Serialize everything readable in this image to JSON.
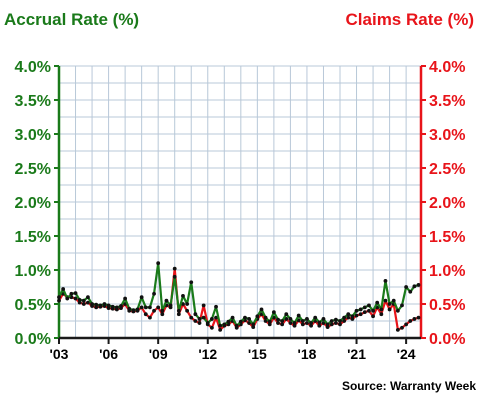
{
  "chart_data": {
    "type": "line",
    "title_left": "Accrual Rate (%)",
    "title_right": "Claims Rate (%)",
    "y_ticks": [
      "0.0%",
      "0.5%",
      "1.0%",
      "1.5%",
      "2.0%",
      "2.5%",
      "3.0%",
      "3.5%",
      "4.0%"
    ],
    "ylim": [
      0,
      4.0
    ],
    "x_ticks": [
      "'03",
      "'06",
      "'09",
      "'12",
      "'15",
      "'18",
      "'21",
      "'24"
    ],
    "x_tick_values": [
      2003,
      2006,
      2009,
      2012,
      2015,
      2018,
      2021,
      2024
    ],
    "xlim": [
      2003,
      2024.9
    ],
    "grid": true,
    "source": "Source: Warranty Week",
    "colors": {
      "accrual": "#1a7a1a",
      "claims": "#e8141a",
      "grid": "#b8c8d8"
    },
    "series": [
      {
        "name": "Accrual Rate (%)",
        "axis": "left",
        "x": [
          2003.0,
          2003.25,
          2003.5,
          2003.75,
          2004.0,
          2004.25,
          2004.5,
          2004.75,
          2005.0,
          2005.25,
          2005.5,
          2005.75,
          2006.0,
          2006.25,
          2006.5,
          2006.75,
          2007.0,
          2007.25,
          2007.5,
          2007.75,
          2008.0,
          2008.25,
          2008.5,
          2008.75,
          2009.0,
          2009.25,
          2009.5,
          2009.75,
          2010.0,
          2010.25,
          2010.5,
          2010.75,
          2011.0,
          2011.25,
          2011.5,
          2011.75,
          2012.0,
          2012.25,
          2012.5,
          2012.75,
          2013.0,
          2013.25,
          2013.5,
          2013.75,
          2014.0,
          2014.25,
          2014.5,
          2014.75,
          2015.0,
          2015.25,
          2015.5,
          2015.75,
          2016.0,
          2016.25,
          2016.5,
          2016.75,
          2017.0,
          2017.25,
          2017.5,
          2017.75,
          2018.0,
          2018.25,
          2018.5,
          2018.75,
          2019.0,
          2019.25,
          2019.5,
          2019.75,
          2020.0,
          2020.25,
          2020.5,
          2020.75,
          2021.0,
          2021.25,
          2021.5,
          2021.75,
          2022.0,
          2022.25,
          2022.5,
          2022.75,
          2023.0,
          2023.25,
          2023.5,
          2023.75,
          2024.0,
          2024.25,
          2024.5,
          2024.75
        ],
        "values": [
          0.6,
          0.72,
          0.58,
          0.65,
          0.66,
          0.56,
          0.55,
          0.6,
          0.5,
          0.49,
          0.48,
          0.5,
          0.48,
          0.46,
          0.45,
          0.47,
          0.58,
          0.43,
          0.41,
          0.42,
          0.6,
          0.45,
          0.45,
          0.65,
          1.1,
          0.4,
          0.55,
          0.48,
          0.9,
          0.4,
          0.62,
          0.5,
          0.82,
          0.35,
          0.28,
          0.3,
          0.22,
          0.28,
          0.46,
          0.18,
          0.2,
          0.24,
          0.3,
          0.18,
          0.24,
          0.3,
          0.28,
          0.2,
          0.32,
          0.42,
          0.3,
          0.24,
          0.38,
          0.27,
          0.25,
          0.35,
          0.28,
          0.22,
          0.33,
          0.25,
          0.28,
          0.22,
          0.3,
          0.23,
          0.28,
          0.2,
          0.25,
          0.27,
          0.25,
          0.3,
          0.35,
          0.32,
          0.4,
          0.42,
          0.45,
          0.48,
          0.4,
          0.52,
          0.42,
          0.84,
          0.5,
          0.55,
          0.4,
          0.48,
          0.75,
          0.68,
          0.76,
          0.78
        ]
      },
      {
        "name": "Claims Rate (%)",
        "axis": "right",
        "x": [
          2003.0,
          2003.25,
          2003.5,
          2003.75,
          2004.0,
          2004.25,
          2004.5,
          2004.75,
          2005.0,
          2005.25,
          2005.5,
          2005.75,
          2006.0,
          2006.25,
          2006.5,
          2006.75,
          2007.0,
          2007.25,
          2007.5,
          2007.75,
          2008.0,
          2008.25,
          2008.5,
          2008.75,
          2009.0,
          2009.25,
          2009.5,
          2009.75,
          2010.0,
          2010.25,
          2010.5,
          2010.75,
          2011.0,
          2011.25,
          2011.5,
          2011.75,
          2012.0,
          2012.25,
          2012.5,
          2012.75,
          2013.0,
          2013.25,
          2013.5,
          2013.75,
          2014.0,
          2014.25,
          2014.5,
          2014.75,
          2015.0,
          2015.25,
          2015.5,
          2015.75,
          2016.0,
          2016.25,
          2016.5,
          2016.75,
          2017.0,
          2017.25,
          2017.5,
          2017.75,
          2018.0,
          2018.25,
          2018.5,
          2018.75,
          2019.0,
          2019.25,
          2019.5,
          2019.75,
          2020.0,
          2020.25,
          2020.5,
          2020.75,
          2021.0,
          2021.25,
          2021.5,
          2021.75,
          2022.0,
          2022.25,
          2022.5,
          2022.75,
          2023.0,
          2023.25,
          2023.5,
          2023.75,
          2024.0,
          2024.25,
          2024.5,
          2024.75
        ],
        "values": [
          0.55,
          0.65,
          0.6,
          0.6,
          0.58,
          0.52,
          0.5,
          0.52,
          0.47,
          0.45,
          0.46,
          0.47,
          0.44,
          0.43,
          0.42,
          0.44,
          0.5,
          0.4,
          0.39,
          0.4,
          0.45,
          0.35,
          0.3,
          0.4,
          0.45,
          0.35,
          0.48,
          0.45,
          1.02,
          0.35,
          0.5,
          0.4,
          0.3,
          0.25,
          0.22,
          0.48,
          0.2,
          0.15,
          0.3,
          0.12,
          0.18,
          0.2,
          0.25,
          0.15,
          0.2,
          0.26,
          0.22,
          0.16,
          0.28,
          0.35,
          0.25,
          0.2,
          0.3,
          0.22,
          0.2,
          0.28,
          0.22,
          0.18,
          0.26,
          0.2,
          0.22,
          0.18,
          0.25,
          0.18,
          0.22,
          0.16,
          0.2,
          0.22,
          0.2,
          0.25,
          0.3,
          0.28,
          0.33,
          0.35,
          0.38,
          0.4,
          0.32,
          0.45,
          0.35,
          0.55,
          0.42,
          0.5,
          0.12,
          0.15,
          0.2,
          0.25,
          0.28,
          0.3
        ]
      }
    ]
  }
}
